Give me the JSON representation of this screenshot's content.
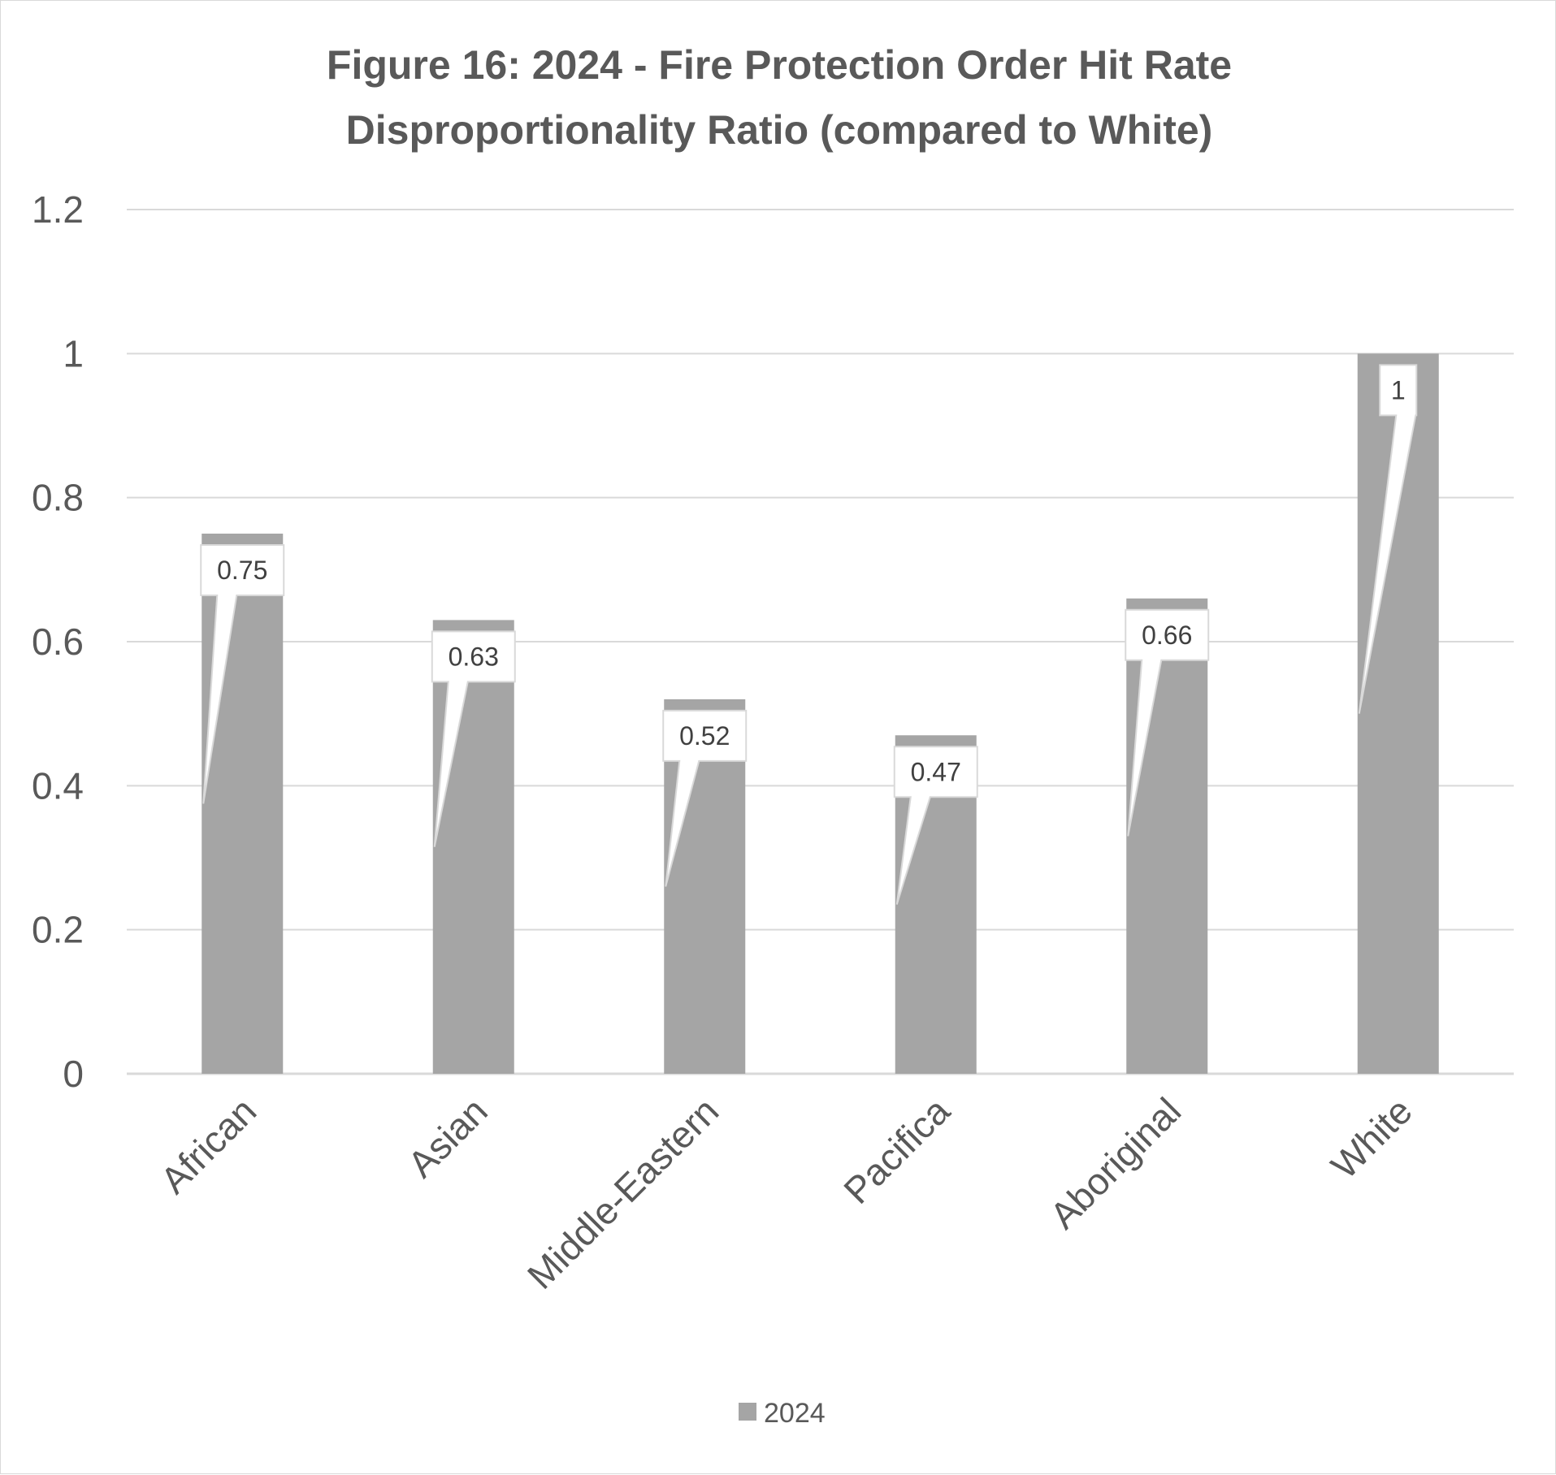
{
  "chart_data": {
    "type": "bar",
    "title_lines": [
      "Figure 16: 2024 - Fire Protection Order Hit Rate",
      "Disproportionality Ratio (compared to White)"
    ],
    "categories": [
      "African",
      "Asian",
      "Middle-Eastern",
      "Pacifica",
      "Aboriginal",
      "White"
    ],
    "series": [
      {
        "name": "2024",
        "values": [
          0.75,
          0.63,
          0.52,
          0.47,
          0.66,
          1
        ],
        "data_labels": [
          "0.75",
          "0.63",
          "0.52",
          "0.47",
          "0.66",
          "1"
        ]
      }
    ],
    "yticks": [
      "0",
      "0.2",
      "0.4",
      "0.6",
      "0.8",
      "1",
      "1.2"
    ],
    "ylim": [
      0,
      1.2
    ],
    "grid": true,
    "legend": "bottom-center",
    "colors": {
      "bar": "#a5a5a5",
      "grid": "#d9d9d9",
      "axis": "#d9d9d9",
      "text": "#595959"
    },
    "xlabel": "",
    "ylabel": ""
  }
}
